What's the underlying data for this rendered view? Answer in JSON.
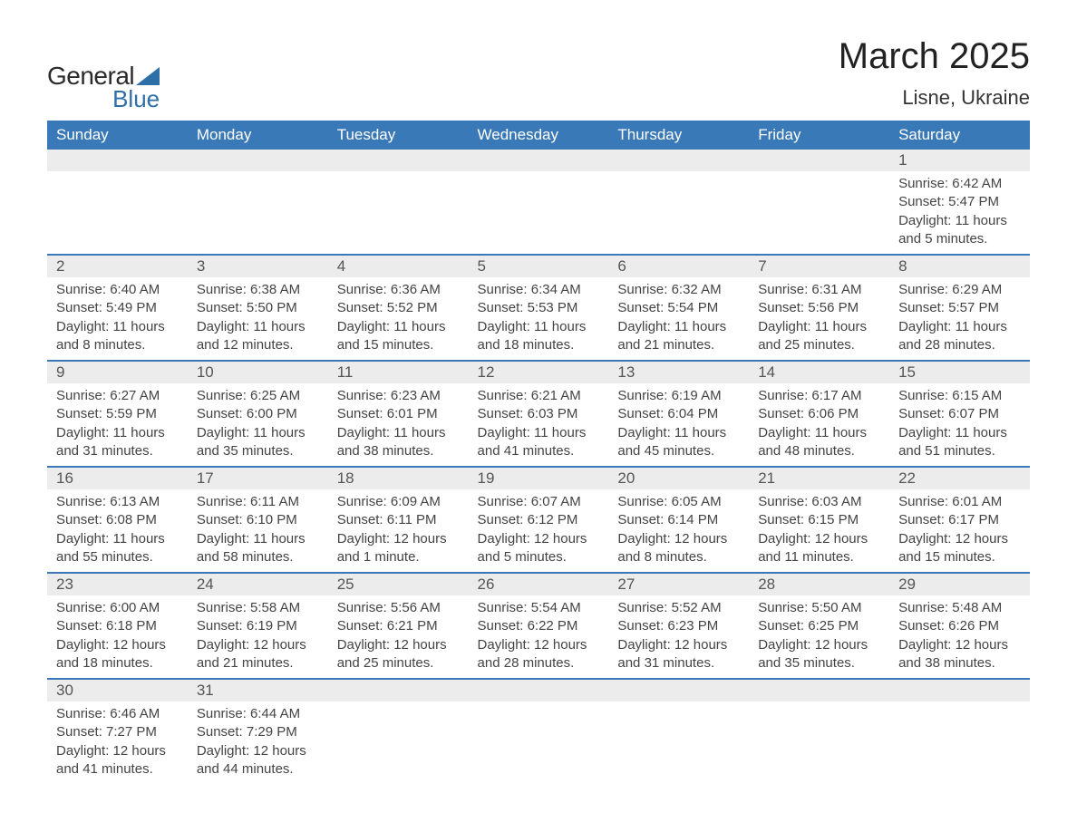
{
  "logo": {
    "word1": "General",
    "word2": "Blue",
    "sail_color": "#2f6fa7",
    "text_dark": "#2a2a2a"
  },
  "header": {
    "month_title": "March 2025",
    "location": "Lisne, Ukraine"
  },
  "colors": {
    "header_bg": "#3a79b7",
    "header_text": "#ffffff",
    "row_divider": "#3a79b7",
    "daynum_bg": "#ececec",
    "body_text": "#444444",
    "page_bg": "#ffffff"
  },
  "calendar": {
    "day_headers": [
      "Sunday",
      "Monday",
      "Tuesday",
      "Wednesday",
      "Thursday",
      "Friday",
      "Saturday"
    ],
    "weeks": [
      [
        null,
        null,
        null,
        null,
        null,
        null,
        {
          "n": "1",
          "sunrise": "Sunrise: 6:42 AM",
          "sunset": "Sunset: 5:47 PM",
          "daylight": "Daylight: 11 hours and 5 minutes."
        }
      ],
      [
        {
          "n": "2",
          "sunrise": "Sunrise: 6:40 AM",
          "sunset": "Sunset: 5:49 PM",
          "daylight": "Daylight: 11 hours and 8 minutes."
        },
        {
          "n": "3",
          "sunrise": "Sunrise: 6:38 AM",
          "sunset": "Sunset: 5:50 PM",
          "daylight": "Daylight: 11 hours and 12 minutes."
        },
        {
          "n": "4",
          "sunrise": "Sunrise: 6:36 AM",
          "sunset": "Sunset: 5:52 PM",
          "daylight": "Daylight: 11 hours and 15 minutes."
        },
        {
          "n": "5",
          "sunrise": "Sunrise: 6:34 AM",
          "sunset": "Sunset: 5:53 PM",
          "daylight": "Daylight: 11 hours and 18 minutes."
        },
        {
          "n": "6",
          "sunrise": "Sunrise: 6:32 AM",
          "sunset": "Sunset: 5:54 PM",
          "daylight": "Daylight: 11 hours and 21 minutes."
        },
        {
          "n": "7",
          "sunrise": "Sunrise: 6:31 AM",
          "sunset": "Sunset: 5:56 PM",
          "daylight": "Daylight: 11 hours and 25 minutes."
        },
        {
          "n": "8",
          "sunrise": "Sunrise: 6:29 AM",
          "sunset": "Sunset: 5:57 PM",
          "daylight": "Daylight: 11 hours and 28 minutes."
        }
      ],
      [
        {
          "n": "9",
          "sunrise": "Sunrise: 6:27 AM",
          "sunset": "Sunset: 5:59 PM",
          "daylight": "Daylight: 11 hours and 31 minutes."
        },
        {
          "n": "10",
          "sunrise": "Sunrise: 6:25 AM",
          "sunset": "Sunset: 6:00 PM",
          "daylight": "Daylight: 11 hours and 35 minutes."
        },
        {
          "n": "11",
          "sunrise": "Sunrise: 6:23 AM",
          "sunset": "Sunset: 6:01 PM",
          "daylight": "Daylight: 11 hours and 38 minutes."
        },
        {
          "n": "12",
          "sunrise": "Sunrise: 6:21 AM",
          "sunset": "Sunset: 6:03 PM",
          "daylight": "Daylight: 11 hours and 41 minutes."
        },
        {
          "n": "13",
          "sunrise": "Sunrise: 6:19 AM",
          "sunset": "Sunset: 6:04 PM",
          "daylight": "Daylight: 11 hours and 45 minutes."
        },
        {
          "n": "14",
          "sunrise": "Sunrise: 6:17 AM",
          "sunset": "Sunset: 6:06 PM",
          "daylight": "Daylight: 11 hours and 48 minutes."
        },
        {
          "n": "15",
          "sunrise": "Sunrise: 6:15 AM",
          "sunset": "Sunset: 6:07 PM",
          "daylight": "Daylight: 11 hours and 51 minutes."
        }
      ],
      [
        {
          "n": "16",
          "sunrise": "Sunrise: 6:13 AM",
          "sunset": "Sunset: 6:08 PM",
          "daylight": "Daylight: 11 hours and 55 minutes."
        },
        {
          "n": "17",
          "sunrise": "Sunrise: 6:11 AM",
          "sunset": "Sunset: 6:10 PM",
          "daylight": "Daylight: 11 hours and 58 minutes."
        },
        {
          "n": "18",
          "sunrise": "Sunrise: 6:09 AM",
          "sunset": "Sunset: 6:11 PM",
          "daylight": "Daylight: 12 hours and 1 minute."
        },
        {
          "n": "19",
          "sunrise": "Sunrise: 6:07 AM",
          "sunset": "Sunset: 6:12 PM",
          "daylight": "Daylight: 12 hours and 5 minutes."
        },
        {
          "n": "20",
          "sunrise": "Sunrise: 6:05 AM",
          "sunset": "Sunset: 6:14 PM",
          "daylight": "Daylight: 12 hours and 8 minutes."
        },
        {
          "n": "21",
          "sunrise": "Sunrise: 6:03 AM",
          "sunset": "Sunset: 6:15 PM",
          "daylight": "Daylight: 12 hours and 11 minutes."
        },
        {
          "n": "22",
          "sunrise": "Sunrise: 6:01 AM",
          "sunset": "Sunset: 6:17 PM",
          "daylight": "Daylight: 12 hours and 15 minutes."
        }
      ],
      [
        {
          "n": "23",
          "sunrise": "Sunrise: 6:00 AM",
          "sunset": "Sunset: 6:18 PM",
          "daylight": "Daylight: 12 hours and 18 minutes."
        },
        {
          "n": "24",
          "sunrise": "Sunrise: 5:58 AM",
          "sunset": "Sunset: 6:19 PM",
          "daylight": "Daylight: 12 hours and 21 minutes."
        },
        {
          "n": "25",
          "sunrise": "Sunrise: 5:56 AM",
          "sunset": "Sunset: 6:21 PM",
          "daylight": "Daylight: 12 hours and 25 minutes."
        },
        {
          "n": "26",
          "sunrise": "Sunrise: 5:54 AM",
          "sunset": "Sunset: 6:22 PM",
          "daylight": "Daylight: 12 hours and 28 minutes."
        },
        {
          "n": "27",
          "sunrise": "Sunrise: 5:52 AM",
          "sunset": "Sunset: 6:23 PM",
          "daylight": "Daylight: 12 hours and 31 minutes."
        },
        {
          "n": "28",
          "sunrise": "Sunrise: 5:50 AM",
          "sunset": "Sunset: 6:25 PM",
          "daylight": "Daylight: 12 hours and 35 minutes."
        },
        {
          "n": "29",
          "sunrise": "Sunrise: 5:48 AM",
          "sunset": "Sunset: 6:26 PM",
          "daylight": "Daylight: 12 hours and 38 minutes."
        }
      ],
      [
        {
          "n": "30",
          "sunrise": "Sunrise: 6:46 AM",
          "sunset": "Sunset: 7:27 PM",
          "daylight": "Daylight: 12 hours and 41 minutes."
        },
        {
          "n": "31",
          "sunrise": "Sunrise: 6:44 AM",
          "sunset": "Sunset: 7:29 PM",
          "daylight": "Daylight: 12 hours and 44 minutes."
        },
        null,
        null,
        null,
        null,
        null
      ]
    ]
  }
}
